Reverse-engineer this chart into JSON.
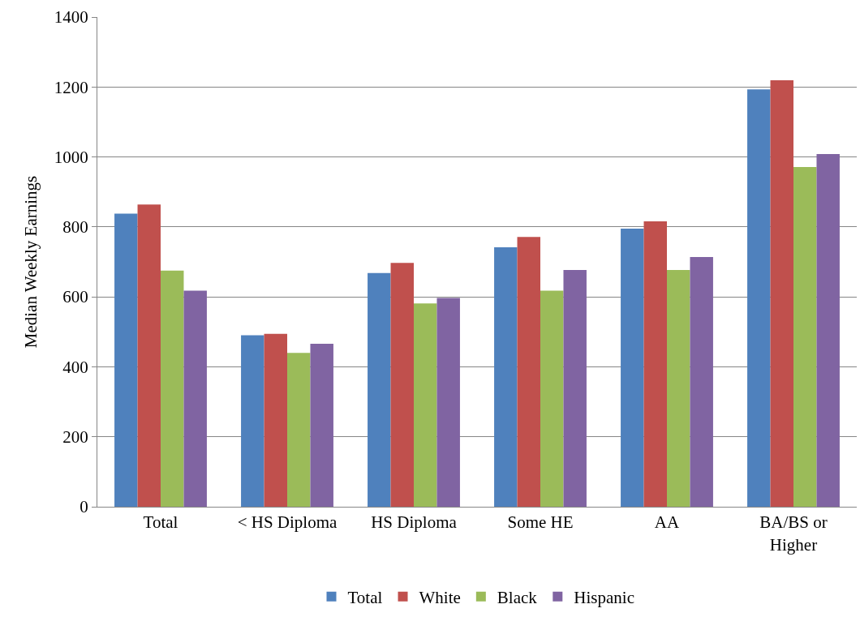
{
  "chart_data": {
    "type": "bar",
    "ylabel": "Median Weekly Earnings",
    "categories": [
      "Total",
      "< HS Diploma",
      "HS Diploma",
      "Some HE",
      "AA",
      "BA/BS or Higher"
    ],
    "series": [
      {
        "name": "Total",
        "color": "#4f81bd",
        "values": [
          838,
          490,
          668,
          742,
          795,
          1193
        ]
      },
      {
        "name": "White",
        "color": "#c0504d",
        "values": [
          864,
          494,
          697,
          771,
          816,
          1219
        ]
      },
      {
        "name": "Black",
        "color": "#9bbb59",
        "values": [
          675,
          440,
          581,
          618,
          677,
          971
        ]
      },
      {
        "name": "Hispanic",
        "color": "#8064a2",
        "values": [
          618,
          466,
          597,
          677,
          714,
          1008
        ]
      }
    ],
    "ylim": [
      0,
      1400
    ],
    "yticks": [
      0,
      200,
      400,
      600,
      800,
      1000,
      1200,
      1400
    ],
    "grid": "y",
    "legend": "bottom"
  }
}
